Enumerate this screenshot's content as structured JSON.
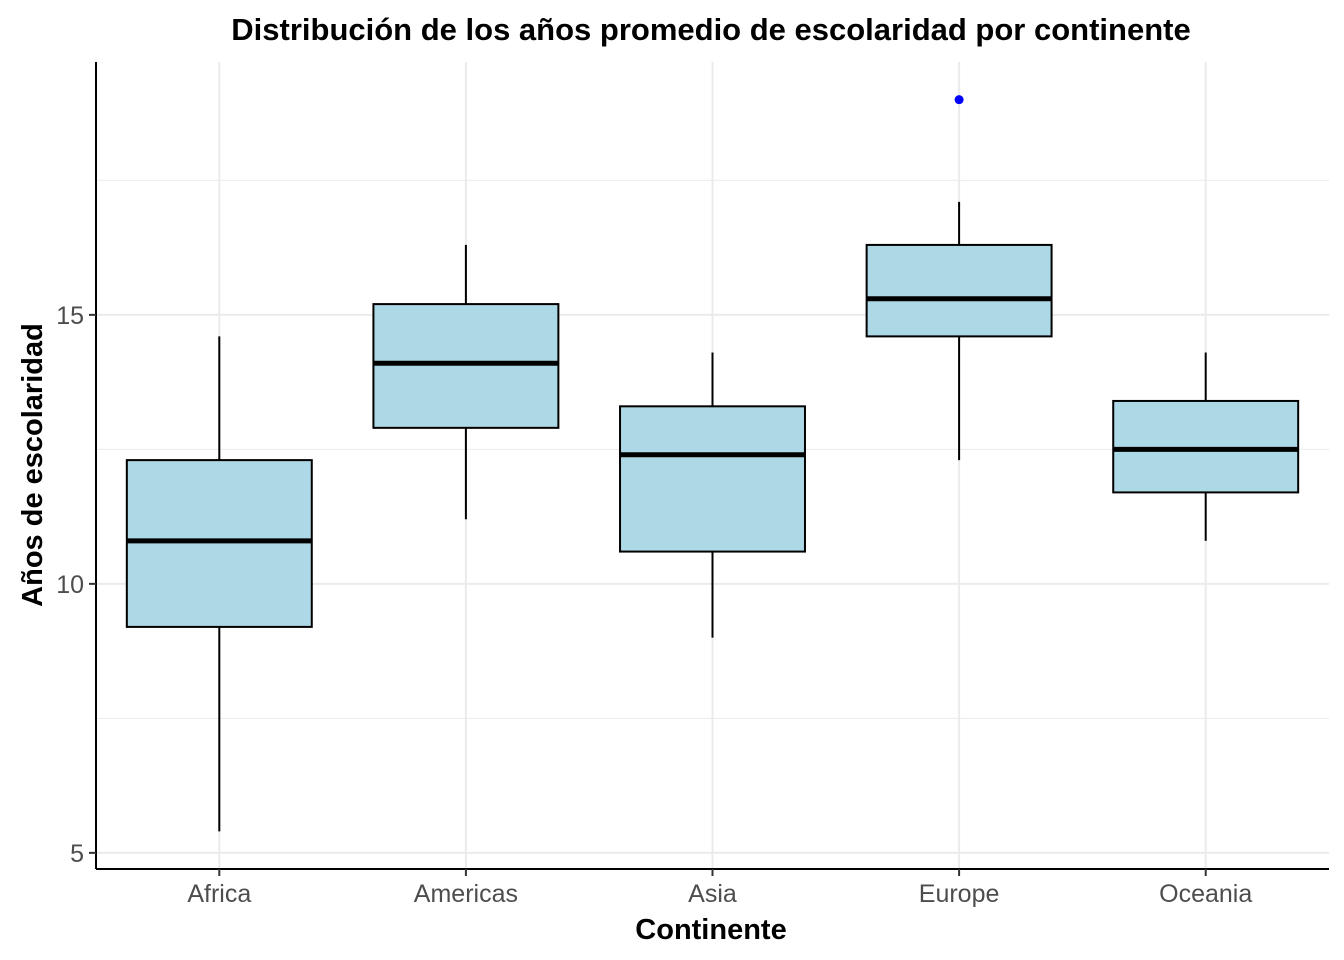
{
  "chart_data": {
    "type": "box",
    "title": "Distribución de los años promedio de escolaridad por continente",
    "xlabel": "Continente",
    "ylabel": "Años de escolaridad",
    "categories": [
      "Africa",
      "Americas",
      "Asia",
      "Europe",
      "Oceania"
    ],
    "ylim": [
      4.7,
      19.7
    ],
    "yticks": [
      5,
      10,
      15
    ],
    "grid": true,
    "box_fill": "#add8e6",
    "outlier_color": "#0000ff",
    "boxes": [
      {
        "category": "Africa",
        "whisker_low": 5.4,
        "q1": 9.2,
        "median": 10.8,
        "q3": 12.3,
        "whisker_high": 14.6
      },
      {
        "category": "Americas",
        "whisker_low": 11.2,
        "q1": 12.9,
        "median": 14.1,
        "q3": 15.2,
        "whisker_high": 16.3
      },
      {
        "category": "Asia",
        "whisker_low": 9.0,
        "q1": 10.6,
        "median": 12.4,
        "q3": 13.3,
        "whisker_high": 14.3
      },
      {
        "category": "Europe",
        "whisker_low": 12.3,
        "q1": 14.6,
        "median": 15.3,
        "q3": 16.3,
        "whisker_high": 17.1
      },
      {
        "category": "Oceania",
        "whisker_low": 10.8,
        "q1": 11.7,
        "median": 12.5,
        "q3": 13.4,
        "whisker_high": 14.3
      }
    ],
    "outliers": [
      {
        "category": "Europe",
        "value": 19.0
      }
    ]
  }
}
